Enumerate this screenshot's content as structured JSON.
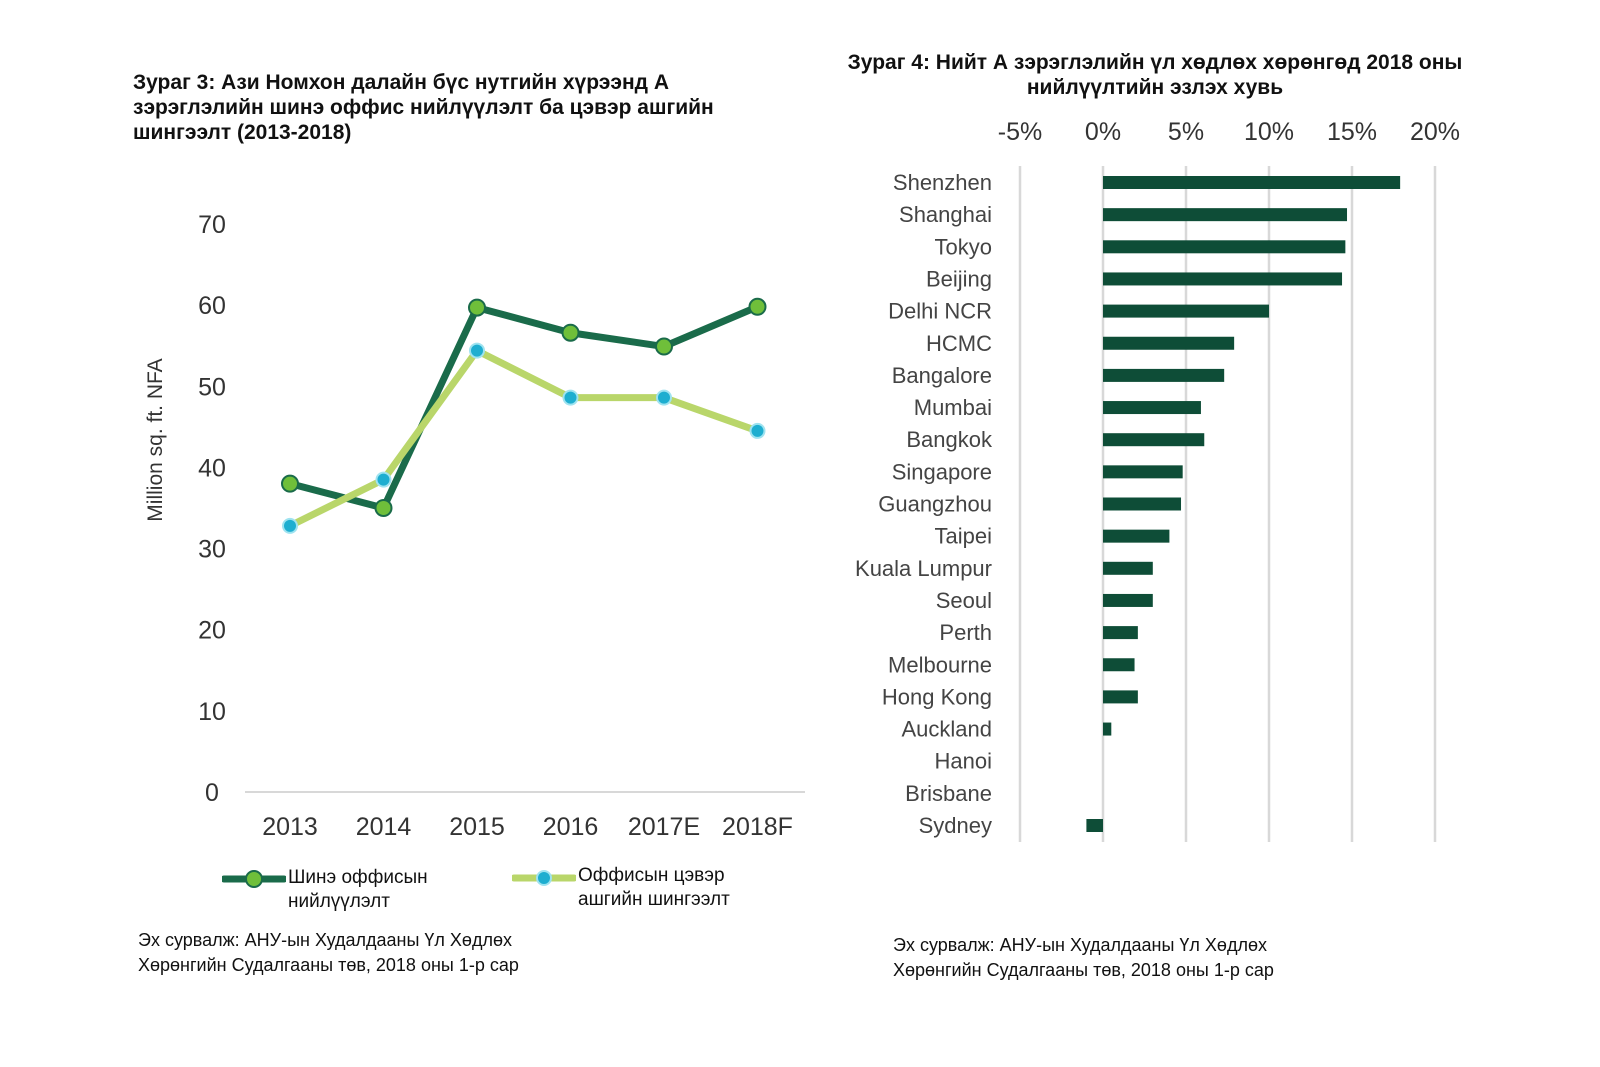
{
  "colors": {
    "dark_green": "#1a6b4a",
    "light_green": "#b9d66a",
    "marker_green": "#6fbf3a",
    "marker_blue": "#1eaed0",
    "bar": "#0e4d37",
    "grid": "#d8d8d8"
  },
  "left": {
    "title": "Зураг 3: Ази Номхон далайн бүс нутгийн хүрээнд А зэрэглэлийн шинэ оффис нийлүүлэлт ба цэвэр ашгийн шингээлт (2013-2018)",
    "source_line1": "Эх сурвалж: АНУ-ын Худалдааны Үл Хөдлөх",
    "source_line2": "Хөрөнгийн Судалгааны төв, 2018 оны 1-р сар"
  },
  "right": {
    "title_line1": "Зураг 4: Нийт А зэрэглэлийн үл хөдлөх хөрөнгөд 2018 оны",
    "title_line2": "нийлүүлтийн эзлэх хувь",
    "source_line1": "Эх сурвалж: АНУ-ын Худалдааны Үл Хөдлөх",
    "source_line2": "Хөрөнгийн Судалгааны төв, 2018 оны 1-р сар"
  },
  "chart_data": [
    {
      "type": "line",
      "ylabel": "Million sq. ft. NFA",
      "xlabel": "",
      "categories": [
        "2013",
        "2014",
        "2015",
        "2016",
        "2017E",
        "2018F"
      ],
      "ylim": [
        0,
        70
      ],
      "yticks": [
        "0",
        "10",
        "20",
        "30",
        "40",
        "50",
        "60",
        "70"
      ],
      "grid": false,
      "legend_position": "bottom",
      "series": [
        {
          "name": "Шинэ оффисын нийлүүлэлт",
          "name_line1": "Шинэ оффисын",
          "name_line2": "нийлүүлэлт",
          "color": "#1a6b4a",
          "marker": "#6fbf3a",
          "values": [
            38,
            35,
            59.7,
            56.6,
            54.9,
            59.8
          ]
        },
        {
          "name": "Оффисын цэвэр ашгийн шингээлт",
          "name_line1": "Оффисын цэвэр",
          "name_line2": "ашгийн шингээлт",
          "color": "#b9d66a",
          "marker": "#1eaed0",
          "values": [
            32.8,
            38.5,
            54.4,
            48.6,
            48.6,
            44.5
          ]
        }
      ]
    },
    {
      "type": "bar",
      "orientation": "horizontal",
      "xlim": [
        -5,
        20
      ],
      "xticks": [
        "-5%",
        "0%",
        "5%",
        "10%",
        "15%",
        "20%"
      ],
      "grid": true,
      "categories": [
        "Shenzhen",
        "Shanghai",
        "Tokyo",
        "Beijing",
        "Delhi NCR",
        "HCMC",
        "Bangalore",
        "Mumbai",
        "Bangkok",
        "Singapore",
        "Guangzhou",
        "Taipei",
        "Kuala Lumpur",
        "Seoul",
        "Perth",
        "Melbourne",
        "Hong Kong",
        "Auckland",
        "Hanoi",
        "Brisbane",
        "Sydney"
      ],
      "values": [
        17.9,
        14.7,
        14.6,
        14.4,
        10.0,
        7.9,
        7.3,
        5.9,
        6.1,
        4.8,
        4.7,
        4.0,
        3.0,
        3.0,
        2.1,
        1.9,
        2.1,
        0.5,
        0,
        0,
        -1.0
      ]
    }
  ]
}
